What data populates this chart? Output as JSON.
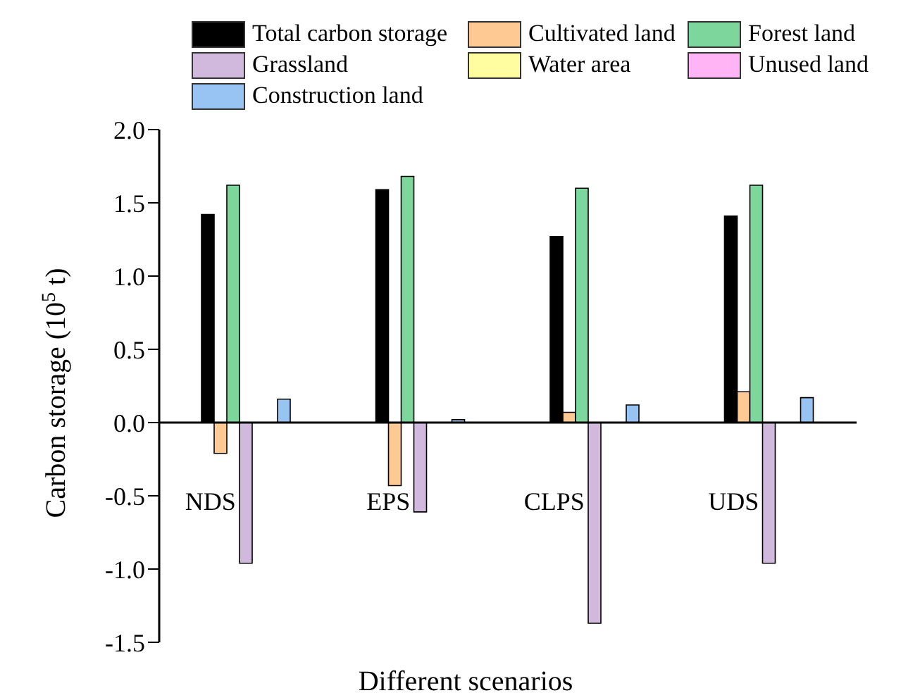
{
  "chart_data": {
    "type": "bar",
    "xlabel": "Different scenarios",
    "ylabel": "Carbon storage (10$^{5}$ t)",
    "categories": [
      "NDS",
      "EPS",
      "CLPS",
      "UDS"
    ],
    "series": [
      {
        "name": "Total carbon storage",
        "color": "#000000",
        "values": [
          1.42,
          1.59,
          1.27,
          1.41
        ]
      },
      {
        "name": "Cultivated land",
        "color": "#ffc994",
        "values": [
          -0.21,
          -0.43,
          0.07,
          0.21
        ]
      },
      {
        "name": "Forest land",
        "color": "#7dd79c",
        "values": [
          1.62,
          1.68,
          1.6,
          1.62
        ]
      },
      {
        "name": "Grassland",
        "color": "#d0b9dc",
        "values": [
          -0.96,
          -0.61,
          -1.37,
          -0.96
        ]
      },
      {
        "name": "Water area",
        "color": "#fffda0",
        "values": [
          null,
          null,
          null,
          null
        ]
      },
      {
        "name": "Unused land",
        "color": "#ffb4f5",
        "values": [
          null,
          null,
          null,
          null
        ]
      },
      {
        "name": "Construction land",
        "color": "#98c4f4",
        "values": [
          0.16,
          0.02,
          0.12,
          0.17
        ]
      }
    ],
    "ylim": [
      -1.5,
      2.0
    ],
    "yticks": [
      {
        "value": -1.5,
        "label": "-1.5"
      },
      {
        "value": -1,
        "label": "-1.0"
      },
      {
        "value": -0.5,
        "label": "-0.5"
      },
      {
        "value": 0,
        "label": "0.0"
      },
      {
        "value": 0.5,
        "label": "0.5"
      },
      {
        "value": 1,
        "label": "1.0"
      },
      {
        "value": 1.5,
        "label": "1.5"
      },
      {
        "value": 2,
        "label": "2.0"
      }
    ],
    "grid": false,
    "legend": "top"
  }
}
